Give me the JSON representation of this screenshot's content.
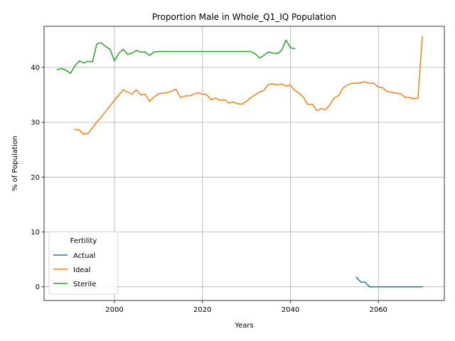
{
  "chart_data": {
    "type": "line",
    "title": "Proportion Male in Whole_Q1_IQ Population",
    "xlabel": "Years",
    "ylabel": "% of Population",
    "xlim": [
      1984,
      2075
    ],
    "ylim": [
      -2.5,
      47.5
    ],
    "xticks": [
      2000,
      2020,
      2040,
      2060
    ],
    "yticks": [
      0,
      10,
      20,
      30,
      40
    ],
    "grid": true,
    "legend": {
      "title": "Fertility",
      "placement": "lower-left"
    },
    "series": [
      {
        "name": "Actual",
        "color": "#1f77b4",
        "x": [
          2055,
          2056,
          2057,
          2058,
          2059,
          2060,
          2061,
          2062,
          2063,
          2064,
          2065,
          2066,
          2067,
          2068,
          2069,
          2070
        ],
        "y": [
          1.7,
          0.9,
          0.8,
          0.0,
          0.0,
          0.0,
          0.0,
          0.0,
          0.0,
          0.0,
          0.0,
          0.0,
          0.0,
          0.0,
          0.0,
          0.0
        ]
      },
      {
        "name": "Ideal",
        "color": "#ff7f0e",
        "x": [
          1991,
          1992,
          1993,
          1994,
          1995,
          1996,
          1997,
          1998,
          1999,
          2000,
          2001,
          2002,
          2003,
          2004,
          2005,
          2006,
          2007,
          2008,
          2009,
          2010,
          2011,
          2012,
          2013,
          2014,
          2015,
          2016,
          2017,
          2018,
          2019,
          2020,
          2021,
          2022,
          2023,
          2024,
          2025,
          2026,
          2027,
          2028,
          2029,
          2030,
          2031,
          2032,
          2033,
          2034,
          2035,
          2036,
          2037,
          2038,
          2039,
          2040,
          2041,
          2042,
          2043,
          2044,
          2045,
          2046,
          2047,
          2048,
          2049,
          2050,
          2051,
          2052,
          2053,
          2054,
          2055,
          2056,
          2057,
          2058,
          2059,
          2060,
          2061,
          2062,
          2063,
          2064,
          2065,
          2066,
          2067,
          2068,
          2069,
          2070
        ],
        "y": [
          28.7,
          28.6,
          27.8,
          28.0,
          29.0,
          30.0,
          31.0,
          32.0,
          33.0,
          34.0,
          35.0,
          35.9,
          35.5,
          35.1,
          35.9,
          35.0,
          35.1,
          33.8,
          34.6,
          35.2,
          35.3,
          35.4,
          35.7,
          36.0,
          34.5,
          34.8,
          34.8,
          35.1,
          35.4,
          35.1,
          35.0,
          34.1,
          34.4,
          34.0,
          34.1,
          33.5,
          33.7,
          33.4,
          33.3,
          33.8,
          34.5,
          35.0,
          35.5,
          35.8,
          36.9,
          37.0,
          36.8,
          37.0,
          36.6,
          36.8,
          35.8,
          35.3,
          34.5,
          33.2,
          33.3,
          32.1,
          32.5,
          32.3,
          33.2,
          34.5,
          34.9,
          36.3,
          36.8,
          37.1,
          37.1,
          37.2,
          37.4,
          37.1,
          37.1,
          36.4,
          36.3,
          35.6,
          35.5,
          35.3,
          35.2,
          34.6,
          34.5,
          34.3,
          34.4,
          45.6
        ]
      },
      {
        "name": "Sterile",
        "color": "#2ca02c",
        "x": [
          1987,
          1988,
          1989,
          1990,
          1991,
          1992,
          1993,
          1994,
          1995,
          1996,
          1997,
          1998,
          1999,
          2000,
          2001,
          2002,
          2003,
          2004,
          2005,
          2006,
          2007,
          2008,
          2009,
          2010,
          2011,
          2012,
          2013,
          2014,
          2015,
          2016,
          2017,
          2018,
          2019,
          2020,
          2021,
          2022,
          2023,
          2024,
          2025,
          2026,
          2027,
          2028,
          2029,
          2030,
          2031,
          2032,
          2033,
          2034,
          2035,
          2036,
          2037,
          2038,
          2039,
          2040,
          2041
        ],
        "y": [
          39.6,
          39.8,
          39.5,
          38.9,
          40.3,
          41.2,
          40.8,
          41.1,
          41.0,
          44.3,
          44.5,
          43.8,
          43.3,
          41.2,
          42.6,
          43.3,
          42.4,
          42.6,
          43.1,
          42.8,
          42.8,
          42.2,
          42.8,
          42.9,
          42.9,
          42.9,
          42.9,
          42.9,
          42.9,
          42.9,
          42.9,
          42.9,
          42.9,
          42.9,
          42.9,
          42.9,
          42.9,
          42.9,
          42.9,
          42.9,
          42.9,
          42.9,
          42.9,
          42.9,
          42.9,
          42.5,
          41.7,
          42.2,
          42.8,
          42.6,
          42.5,
          43.1,
          45.0,
          43.6,
          43.4
        ]
      }
    ]
  }
}
